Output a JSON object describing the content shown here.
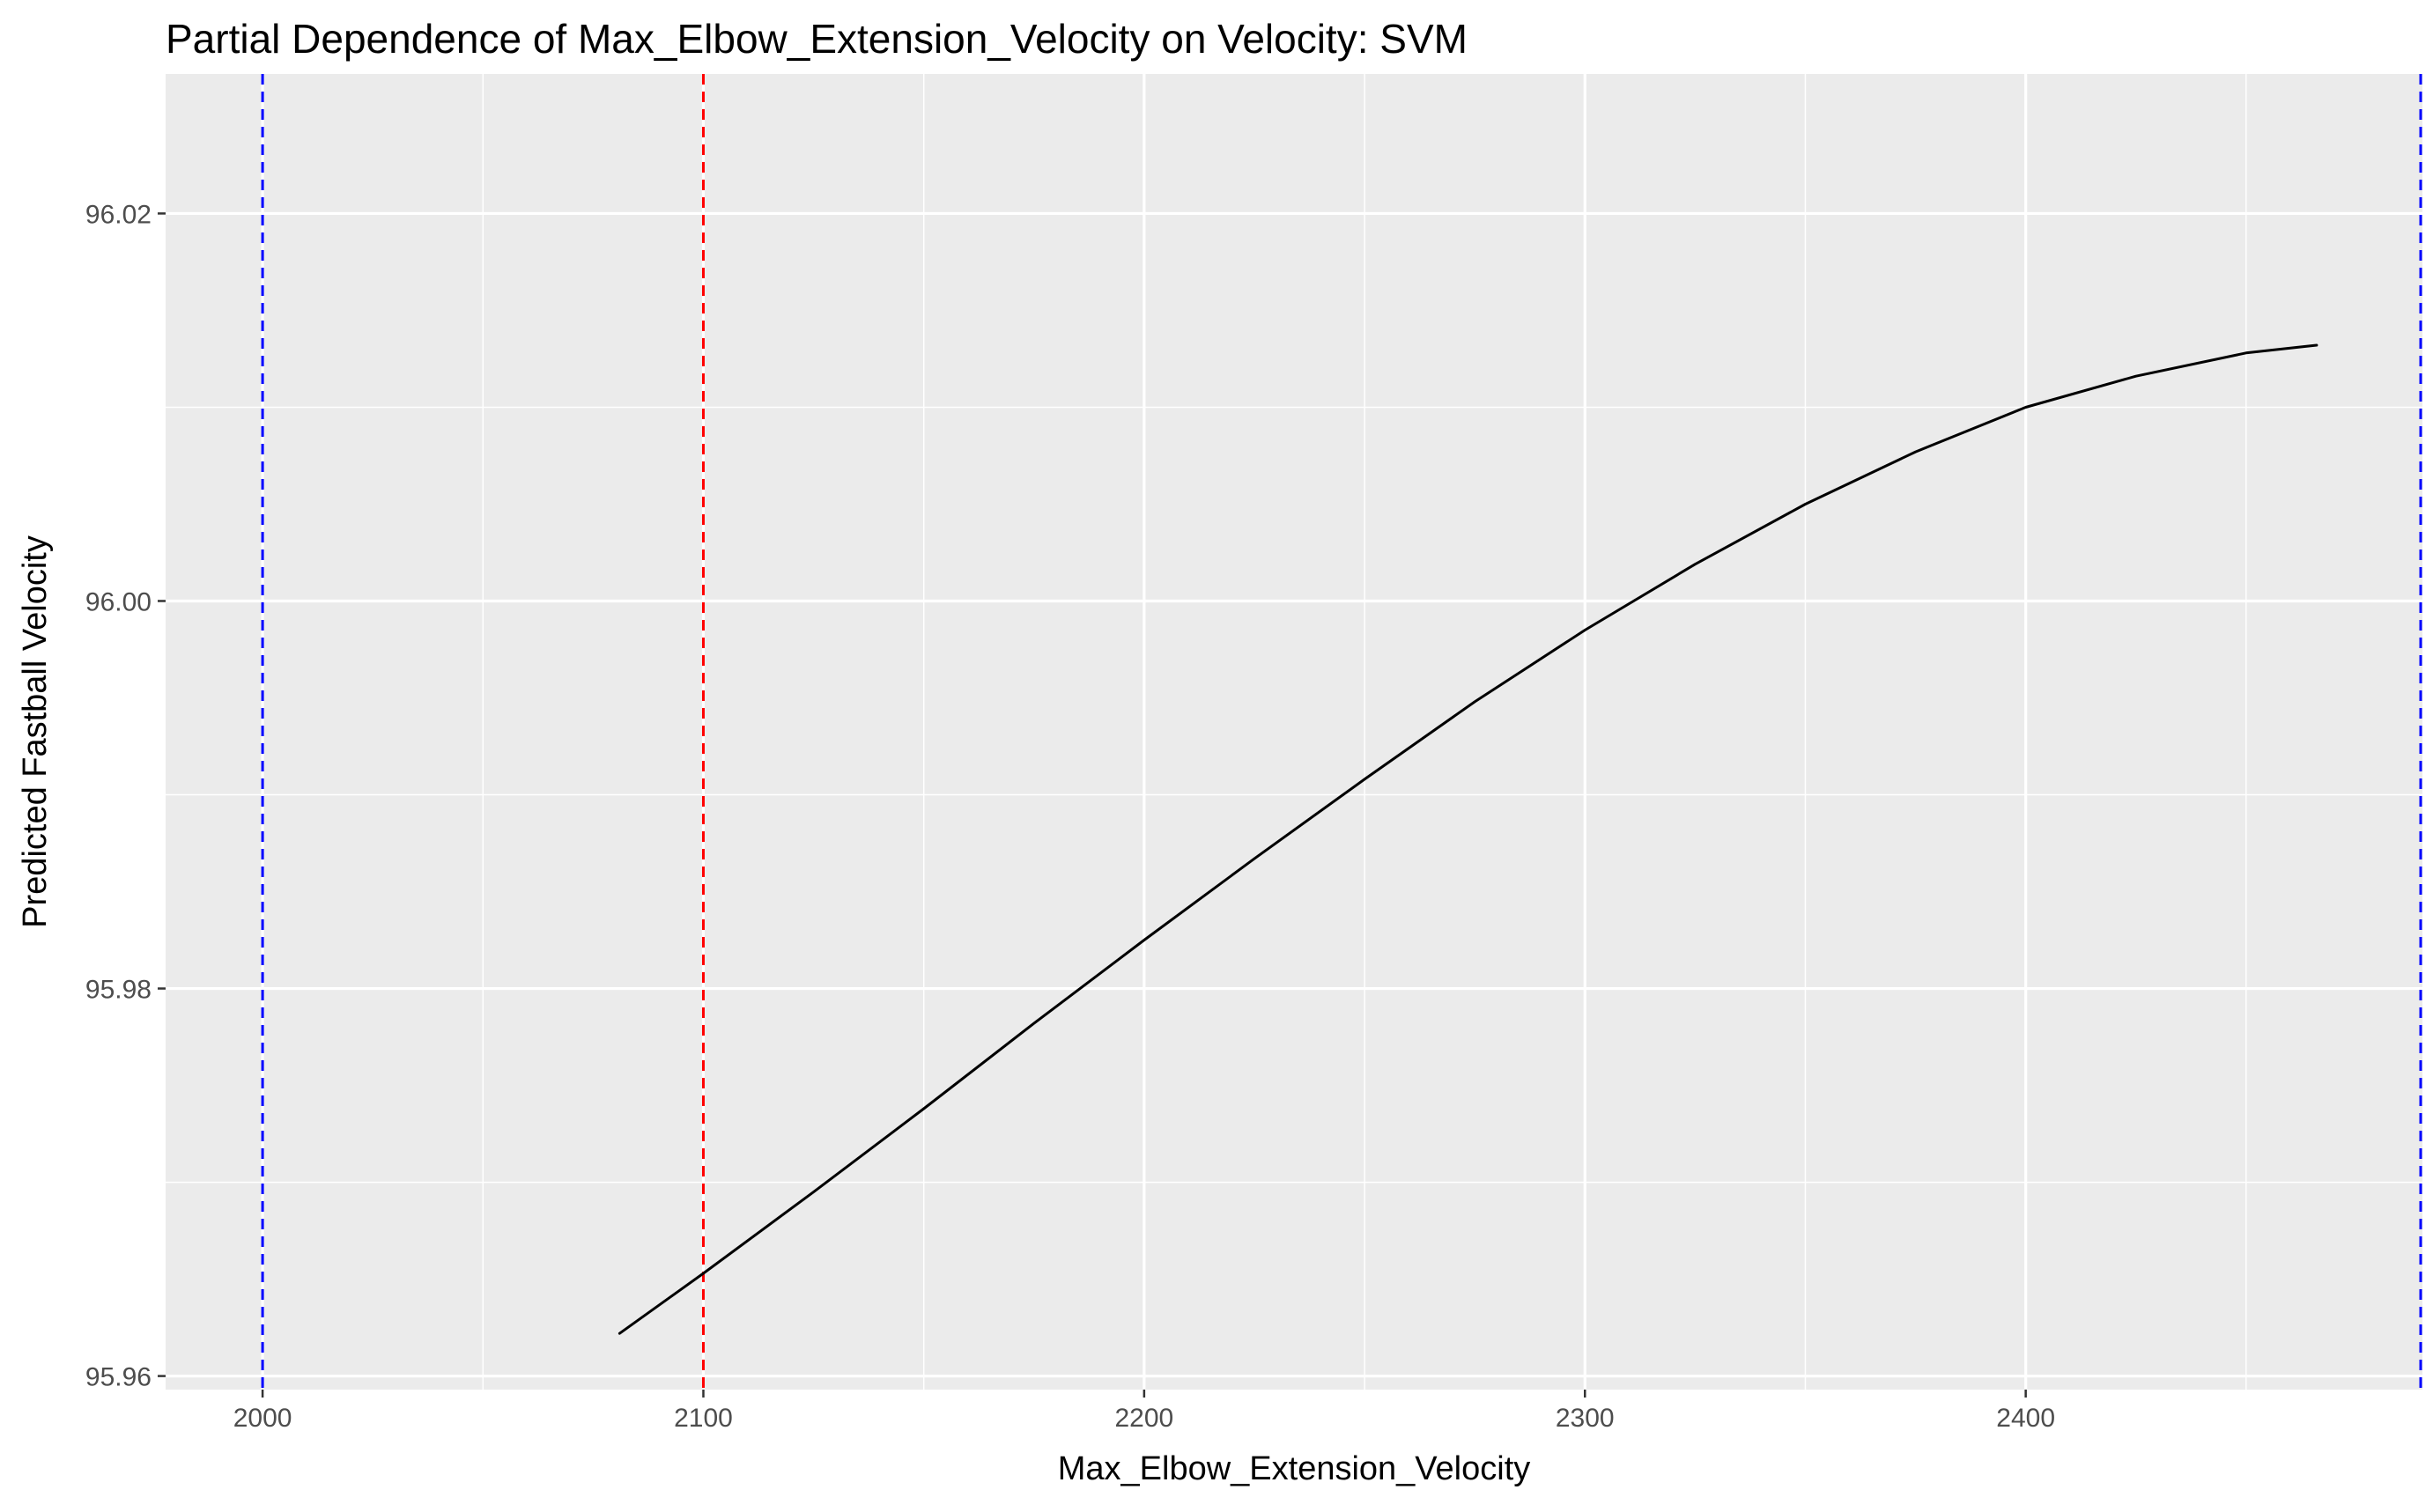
{
  "chart_data": {
    "type": "line",
    "title": "Partial Dependence of Max_Elbow_Extension_Velocity on Velocity: SVM",
    "xlabel": "Max_Elbow_Extension_Velocity",
    "ylabel": "Predicted Fastball Velocity",
    "xlim": [
      1978,
      2490
    ],
    "ylim": [
      95.9593,
      96.0272
    ],
    "x_ticks": [
      2000,
      2100,
      2200,
      2300,
      2400
    ],
    "x_tick_labels": [
      "2000",
      "2100",
      "2200",
      "2300",
      "2400"
    ],
    "y_ticks": [
      95.96,
      95.98,
      96.0,
      96.02
    ],
    "y_tick_labels": [
      "95.96",
      "95.98",
      "96.00",
      "96.02"
    ],
    "grid": true,
    "background": "#ebebeb",
    "series": [
      {
        "color": "#000000",
        "x": [
          2081,
          2100,
          2125,
          2150,
          2175,
          2200,
          2225,
          2250,
          2275,
          2300,
          2325,
          2350,
          2375,
          2400,
          2425,
          2450,
          2466
        ],
        "y": [
          95.9622,
          95.9653,
          95.9695,
          95.9738,
          95.9782,
          95.9825,
          95.9867,
          95.9908,
          95.9948,
          95.9985,
          96.0019,
          96.005,
          96.0077,
          96.01,
          96.0116,
          96.0128,
          96.0132
        ]
      }
    ],
    "vlines": [
      {
        "x": 2000,
        "color": "#0000ff",
        "style": "dashed"
      },
      {
        "x": 2100,
        "color": "#ff0000",
        "style": "dashed"
      },
      {
        "x": 2490,
        "color": "#0000ff",
        "style": "dashed"
      }
    ]
  }
}
